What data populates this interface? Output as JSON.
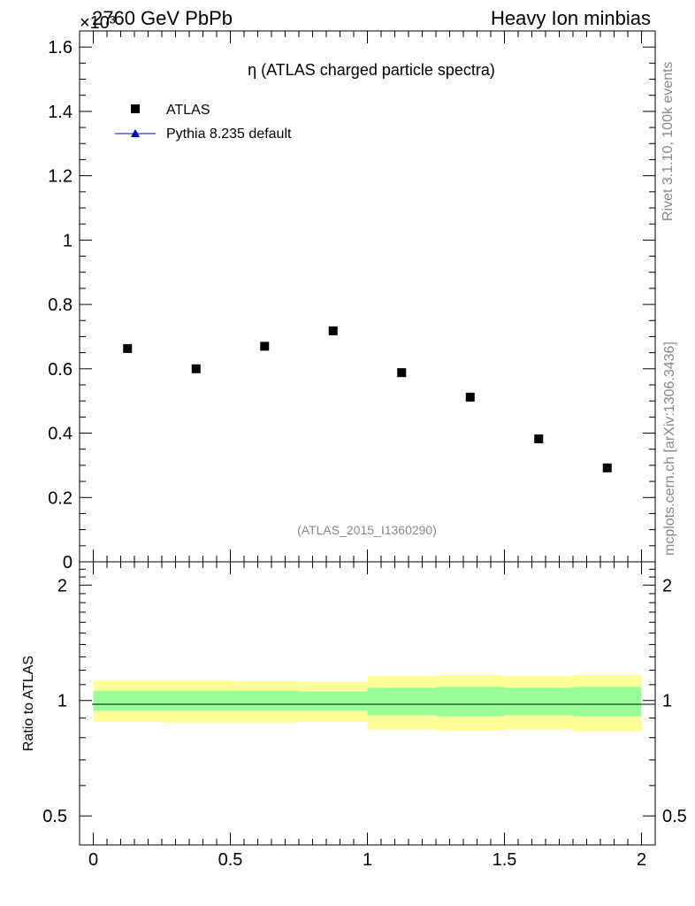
{
  "header": {
    "left": "2760 GeV PbPb",
    "right": "Heavy Ion minbias",
    "exponent": "×10³"
  },
  "side": {
    "rivet": "Rivet 3.1.10,  100k events",
    "mcplots": "mcplots.cern.ch [arXiv:1306.3436]"
  },
  "colors": {
    "data": "#000000",
    "mc": "#0000cc",
    "band_inner": "#99ff99",
    "band_outer": "#ffff99"
  },
  "chart_data": [
    {
      "type": "scatter",
      "title": "η (ATLAS charged particle spectra)",
      "watermark": "(ATLAS_2015_I1360290)",
      "xlim": [
        -0.05,
        2.05
      ],
      "ylim": [
        0,
        1.65
      ],
      "y_multiplier": "×10³",
      "yticks": [
        {
          "v": 0,
          "label": "0"
        },
        {
          "v": 0.2,
          "label": "0.2"
        },
        {
          "v": 0.4,
          "label": "0.4"
        },
        {
          "v": 0.6,
          "label": "0.6"
        },
        {
          "v": 0.8,
          "label": "0.8"
        },
        {
          "v": 1.0,
          "label": "1"
        },
        {
          "v": 1.2,
          "label": "1.2"
        },
        {
          "v": 1.4,
          "label": "1.4"
        },
        {
          "v": 1.6,
          "label": "1.6"
        }
      ],
      "legend": [
        "ATLAS",
        "Pythia 8.235 default"
      ],
      "legend_position": "top-left",
      "series": [
        {
          "name": "ATLAS",
          "x": [
            0.125,
            0.375,
            0.625,
            0.875,
            1.125,
            1.375,
            1.625,
            1.875
          ],
          "y": [
            0.663,
            0.6,
            0.67,
            0.718,
            0.588,
            0.512,
            0.382,
            0.292
          ]
        },
        {
          "name": "Pythia 8.235 default",
          "x": [],
          "y": []
        }
      ]
    },
    {
      "type": "line",
      "ylabel": "Ratio to ATLAS",
      "xlim": [
        -0.05,
        2.05
      ],
      "ylim": [
        0.42,
        2.3
      ],
      "log_y": true,
      "yticks": [
        {
          "v": 0.5,
          "label": "0.5"
        },
        {
          "v": 1,
          "label": "1"
        },
        {
          "v": 2,
          "label": "2"
        }
      ],
      "xticks": [
        {
          "v": 0,
          "label": "0"
        },
        {
          "v": 0.5,
          "label": "0.5"
        },
        {
          "v": 1,
          "label": "1"
        },
        {
          "v": 1.5,
          "label": "1.5"
        },
        {
          "v": 2,
          "label": "2"
        }
      ],
      "bins": [
        {
          "x0": 0.0,
          "x1": 0.25,
          "inner": [
            0.94,
            1.06
          ],
          "outer": [
            0.88,
            1.13
          ]
        },
        {
          "x0": 0.25,
          "x1": 0.5,
          "inner": [
            0.94,
            1.06
          ],
          "outer": [
            0.875,
            1.13
          ]
        },
        {
          "x0": 0.5,
          "x1": 0.75,
          "inner": [
            0.94,
            1.06
          ],
          "outer": [
            0.875,
            1.125
          ]
        },
        {
          "x0": 0.75,
          "x1": 1.0,
          "inner": [
            0.94,
            1.055
          ],
          "outer": [
            0.88,
            1.12
          ]
        },
        {
          "x0": 1.0,
          "x1": 1.25,
          "inner": [
            0.915,
            1.08
          ],
          "outer": [
            0.84,
            1.16
          ]
        },
        {
          "x0": 1.25,
          "x1": 1.5,
          "inner": [
            0.91,
            1.085
          ],
          "outer": [
            0.835,
            1.165
          ]
        },
        {
          "x0": 1.5,
          "x1": 1.75,
          "inner": [
            0.915,
            1.08
          ],
          "outer": [
            0.84,
            1.16
          ]
        },
        {
          "x0": 1.75,
          "x1": 2.0,
          "inner": [
            0.91,
            1.085
          ],
          "outer": [
            0.83,
            1.165
          ]
        }
      ],
      "reference_line": 1
    }
  ]
}
